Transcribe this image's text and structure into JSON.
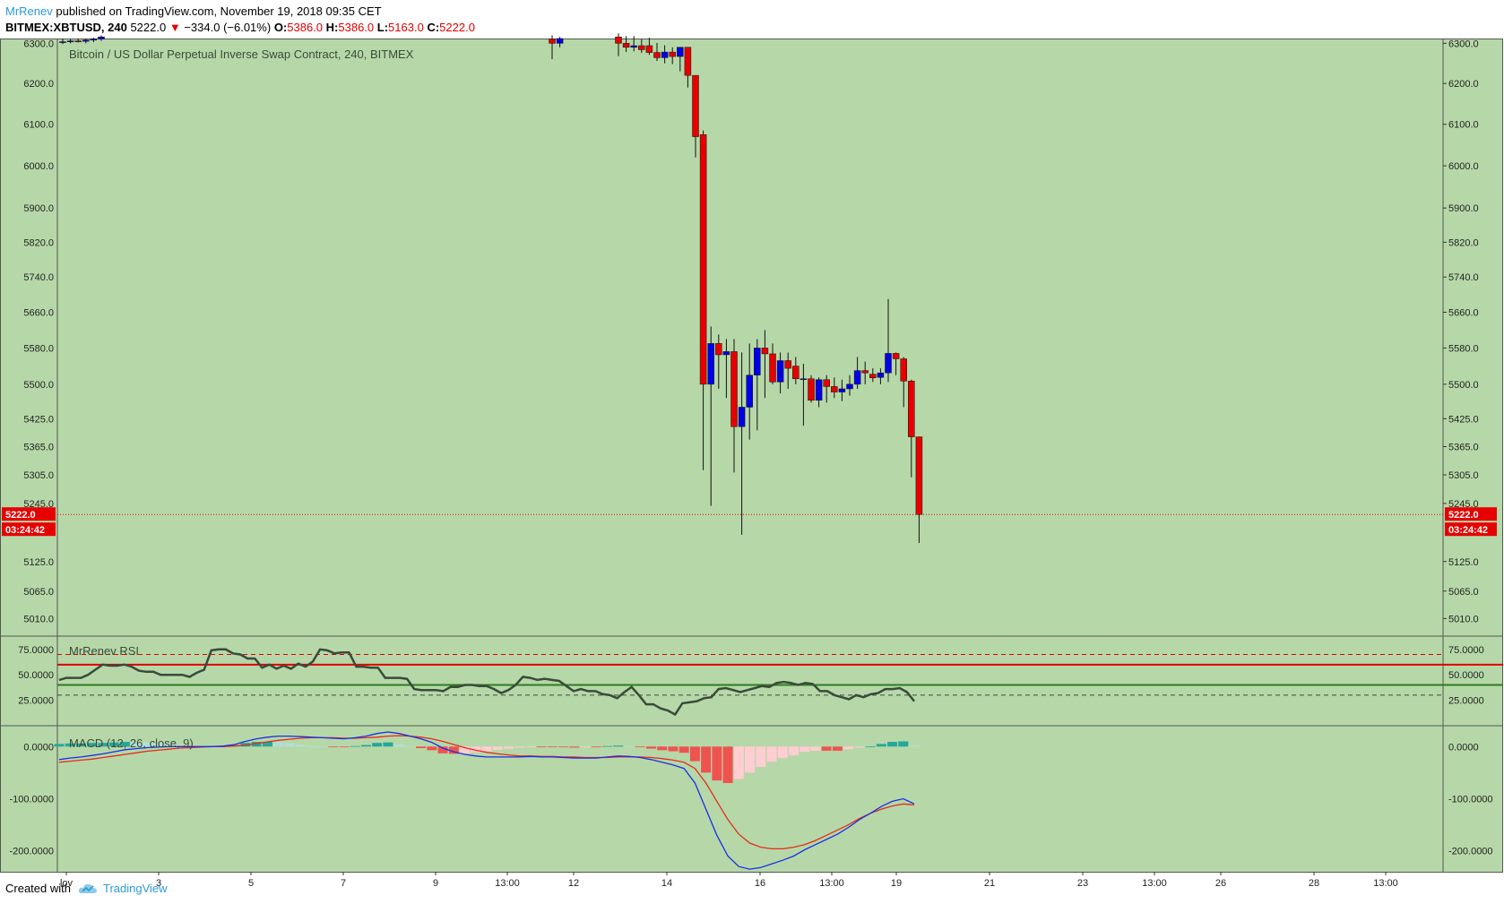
{
  "header": {
    "author": "MrRenev",
    "published_text": " published on TradingView.com, November 19, 2018 09:35 CET"
  },
  "symbol_line": {
    "symbol": "BITMEX:XBTUSD, 240",
    "last": "5222.0",
    "change": "−334.0 (−6.01%)",
    "o_label": "O:",
    "o_value": "5386.0",
    "h_label": "H:",
    "h_value": "5386.0",
    "l_label": "L:",
    "l_value": "5163.0",
    "c_label": "C:",
    "c_value": "5222.0"
  },
  "footer": {
    "created_with": "Created with",
    "brand": "TradingView",
    "logo_icon": "tradingview-cloud-icon"
  },
  "colors": {
    "background": "#b6d8a8",
    "up_candle": "#0000e6",
    "down_candle": "#e60000",
    "wick": "#111111",
    "price_line": "#e60000",
    "rsi_line": "#3a4a3a",
    "rsi_upper": "#e00000",
    "rsi_lower": "#2e7d1e",
    "macd_line": "#1a2ee6",
    "signal_line": "#e62b1a",
    "hist_pos_strong": "#26a69a",
    "hist_pos_weak": "#b2dfdb",
    "hist_neg_strong": "#ef5350",
    "hist_neg_weak": "#ffcdd2"
  },
  "chart_data": [
    {
      "type": "candlestick",
      "title": "Bitcoin / US Dollar Perpetual Inverse Swap Contract, 240, BITMEX",
      "ylim": [
        4975,
        6312
      ],
      "y_scale": "log",
      "y_ticks": [
        "6300.0",
        "6200.0",
        "6100.0",
        "6000.0",
        "5900.0",
        "5820.0",
        "5740.0",
        "5660.0",
        "5580.0",
        "5500.0",
        "5425.0",
        "5365.0",
        "5305.0",
        "5245.0",
        "5125.0",
        "5065.0",
        "5010.0"
      ],
      "x_ticks": [
        "lov",
        "3",
        "5",
        "7",
        "9",
        "13:00",
        "12",
        "14",
        "16",
        "13:00",
        "19",
        "21",
        "23",
        "13:00",
        "26",
        "28",
        "13:00"
      ],
      "last_price_label": "5222.0",
      "countdown_label": "03:24:42",
      "last_price": 5222.0,
      "candles": [
        {
          "o": 6302,
          "h": 6312,
          "l": 6298,
          "c": 6304
        },
        {
          "o": 6304,
          "h": 6310,
          "l": 6300,
          "c": 6306
        },
        {
          "o": 6306,
          "h": 6312,
          "l": 6302,
          "c": 6305
        },
        {
          "o": 6305,
          "h": 6312,
          "l": 6300,
          "c": 6308
        },
        {
          "o": 6308,
          "h": 6314,
          "l": 6303,
          "c": 6311
        },
        {
          "o": 6311,
          "h": 6320,
          "l": 6306,
          "c": 6316
        },
        {
          "o": 6311,
          "h": 6320,
          "l": 6260,
          "c": 6300
        },
        {
          "o": 6300,
          "h": 6316,
          "l": 6290,
          "c": 6312
        },
        {
          "o": 6316,
          "h": 6325,
          "l": 6268,
          "c": 6300
        },
        {
          "o": 6300,
          "h": 6318,
          "l": 6278,
          "c": 6290
        },
        {
          "o": 6290,
          "h": 6318,
          "l": 6280,
          "c": 6294
        },
        {
          "o": 6294,
          "h": 6310,
          "l": 6276,
          "c": 6284
        },
        {
          "o": 6294,
          "h": 6314,
          "l": 6271,
          "c": 6277
        },
        {
          "o": 6277,
          "h": 6301,
          "l": 6256,
          "c": 6264
        },
        {
          "o": 6264,
          "h": 6295,
          "l": 6250,
          "c": 6278
        },
        {
          "o": 6278,
          "h": 6290,
          "l": 6248,
          "c": 6267
        },
        {
          "o": 6267,
          "h": 6290,
          "l": 6230,
          "c": 6290
        },
        {
          "o": 6290,
          "h": 6290,
          "l": 6190,
          "c": 6220
        },
        {
          "o": 6220,
          "h": 6220,
          "l": 6020,
          "c": 6070
        },
        {
          "o": 6075,
          "h": 6085,
          "l": 5315,
          "c": 5500
        },
        {
          "o": 5500,
          "h": 5628,
          "l": 5240,
          "c": 5590
        },
        {
          "o": 5590,
          "h": 5610,
          "l": 5490,
          "c": 5565
        },
        {
          "o": 5565,
          "h": 5600,
          "l": 5470,
          "c": 5572
        },
        {
          "o": 5572,
          "h": 5600,
          "l": 5310,
          "c": 5408
        },
        {
          "o": 5408,
          "h": 5570,
          "l": 5180,
          "c": 5450
        },
        {
          "o": 5450,
          "h": 5590,
          "l": 5380,
          "c": 5520
        },
        {
          "o": 5520,
          "h": 5600,
          "l": 5400,
          "c": 5580
        },
        {
          "o": 5580,
          "h": 5620,
          "l": 5470,
          "c": 5567
        },
        {
          "o": 5567,
          "h": 5590,
          "l": 5500,
          "c": 5505
        },
        {
          "o": 5505,
          "h": 5570,
          "l": 5480,
          "c": 5552
        },
        {
          "o": 5552,
          "h": 5570,
          "l": 5490,
          "c": 5535
        },
        {
          "o": 5540,
          "h": 5560,
          "l": 5500,
          "c": 5512
        },
        {
          "o": 5512,
          "h": 5545,
          "l": 5410,
          "c": 5512
        },
        {
          "o": 5512,
          "h": 5520,
          "l": 5460,
          "c": 5465
        },
        {
          "o": 5465,
          "h": 5515,
          "l": 5450,
          "c": 5510
        },
        {
          "o": 5510,
          "h": 5520,
          "l": 5460,
          "c": 5495
        },
        {
          "o": 5495,
          "h": 5515,
          "l": 5470,
          "c": 5483
        },
        {
          "o": 5483,
          "h": 5510,
          "l": 5463,
          "c": 5490
        },
        {
          "o": 5490,
          "h": 5520,
          "l": 5475,
          "c": 5500
        },
        {
          "o": 5500,
          "h": 5560,
          "l": 5490,
          "c": 5530
        },
        {
          "o": 5530,
          "h": 5550,
          "l": 5500,
          "c": 5525
        },
        {
          "o": 5522,
          "h": 5535,
          "l": 5505,
          "c": 5514
        },
        {
          "o": 5515,
          "h": 5535,
          "l": 5500,
          "c": 5525
        },
        {
          "o": 5525,
          "h": 5690,
          "l": 5505,
          "c": 5568
        },
        {
          "o": 5568,
          "h": 5570,
          "l": 5520,
          "c": 5556
        },
        {
          "o": 5556,
          "h": 5560,
          "l": 5450,
          "c": 5507
        },
        {
          "o": 5507,
          "h": 5510,
          "l": 5300,
          "c": 5386
        },
        {
          "o": 5386,
          "h": 5386,
          "l": 5163,
          "c": 5222
        }
      ]
    },
    {
      "type": "line",
      "title": "MrRenev RSI",
      "ylim": [
        0,
        88
      ],
      "y_ticks": [
        "75.0000",
        "50.0000",
        "25.0000"
      ],
      "levels": {
        "upper_dash": 70,
        "upper": 60,
        "lower": 40,
        "lower_dash": 30
      },
      "values": [
        45,
        47,
        47,
        47,
        50,
        55,
        60,
        59,
        59,
        60,
        58,
        54,
        53,
        53,
        50,
        50,
        50,
        50,
        48,
        52,
        55,
        74,
        75,
        75,
        71,
        70,
        66,
        66,
        57,
        60,
        56,
        59,
        56,
        61,
        58,
        63,
        75,
        74,
        71,
        72,
        72,
        58,
        58,
        57,
        57,
        47,
        47,
        47,
        46,
        36,
        35,
        35,
        35,
        34,
        38,
        38,
        40,
        40,
        39,
        39,
        36,
        32,
        35,
        40,
        48,
        47,
        45,
        46,
        45,
        44,
        39,
        34,
        36,
        34,
        34,
        31,
        30,
        27,
        33,
        38,
        30,
        21,
        21,
        17,
        15,
        11,
        22,
        23,
        24,
        27,
        28,
        36,
        37,
        35,
        33,
        35,
        37,
        39,
        38,
        42,
        43,
        42,
        40,
        42,
        41,
        34,
        34,
        30,
        28,
        26,
        30,
        28,
        31,
        32,
        36,
        36,
        37,
        33,
        24
      ]
    },
    {
      "type": "line",
      "title": "MACD (12, 26, close, 9)",
      "ylim": [
        -240,
        40
      ],
      "y_ticks": [
        "0.0000",
        "-100.0000",
        "-200.0000"
      ],
      "macd": [
        -25,
        -22,
        -20,
        -17,
        -14,
        -10,
        -6,
        -4,
        -2,
        -1,
        0,
        0,
        0,
        0,
        0,
        1,
        4,
        10,
        15,
        18,
        20,
        20,
        19,
        18,
        17,
        16,
        15,
        17,
        20,
        25,
        28,
        25,
        20,
        15,
        8,
        -3,
        -10,
        -15,
        -18,
        -20,
        -20,
        -20,
        -20,
        -19,
        -20,
        -20,
        -21,
        -22,
        -22,
        -22,
        -20,
        -18,
        -19,
        -21,
        -25,
        -30,
        -35,
        -42,
        -70,
        -120,
        -170,
        -210,
        -230,
        -235,
        -232,
        -225,
        -218,
        -210,
        -198,
        -188,
        -178,
        -168,
        -155,
        -140,
        -128,
        -115,
        -105,
        -100,
        -110
      ],
      "signal": [
        -30,
        -28,
        -26,
        -24,
        -21,
        -18,
        -15,
        -12,
        -9,
        -7,
        -5,
        -3,
        -2,
        -1,
        0,
        0,
        1,
        3,
        6,
        9,
        12,
        14,
        16,
        17,
        17,
        17,
        16,
        16,
        17,
        18,
        20,
        21,
        20,
        18,
        15,
        10,
        4,
        -2,
        -7,
        -11,
        -14,
        -16,
        -18,
        -18,
        -19,
        -19,
        -20,
        -20,
        -21,
        -21,
        -21,
        -20,
        -20,
        -20,
        -21,
        -23,
        -26,
        -30,
        -42,
        -70,
        -105,
        -140,
        -168,
        -185,
        -193,
        -196,
        -196,
        -193,
        -188,
        -180,
        -170,
        -160,
        -150,
        -138,
        -128,
        -120,
        -114,
        -110,
        -112
      ],
      "histogram": [
        5,
        6,
        6,
        7,
        7,
        8,
        9,
        8,
        7,
        6,
        5,
        3,
        2,
        1,
        0,
        1,
        3,
        7,
        9,
        9,
        8,
        6,
        3,
        1,
        0,
        -1,
        -1,
        1,
        3,
        7,
        8,
        4,
        0,
        -3,
        -7,
        -13,
        -14,
        -13,
        -11,
        -9,
        -6,
        -4,
        -2,
        -1,
        -1,
        -1,
        -1,
        -2,
        -1,
        -1,
        1,
        2,
        1,
        -1,
        -4,
        -7,
        -9,
        -12,
        -28,
        -50,
        -65,
        -70,
        -62,
        -50,
        -39,
        -29,
        -22,
        -17,
        -10,
        -8,
        -8,
        -8,
        -5,
        -2,
        0,
        5,
        9,
        10,
        2
      ]
    }
  ]
}
